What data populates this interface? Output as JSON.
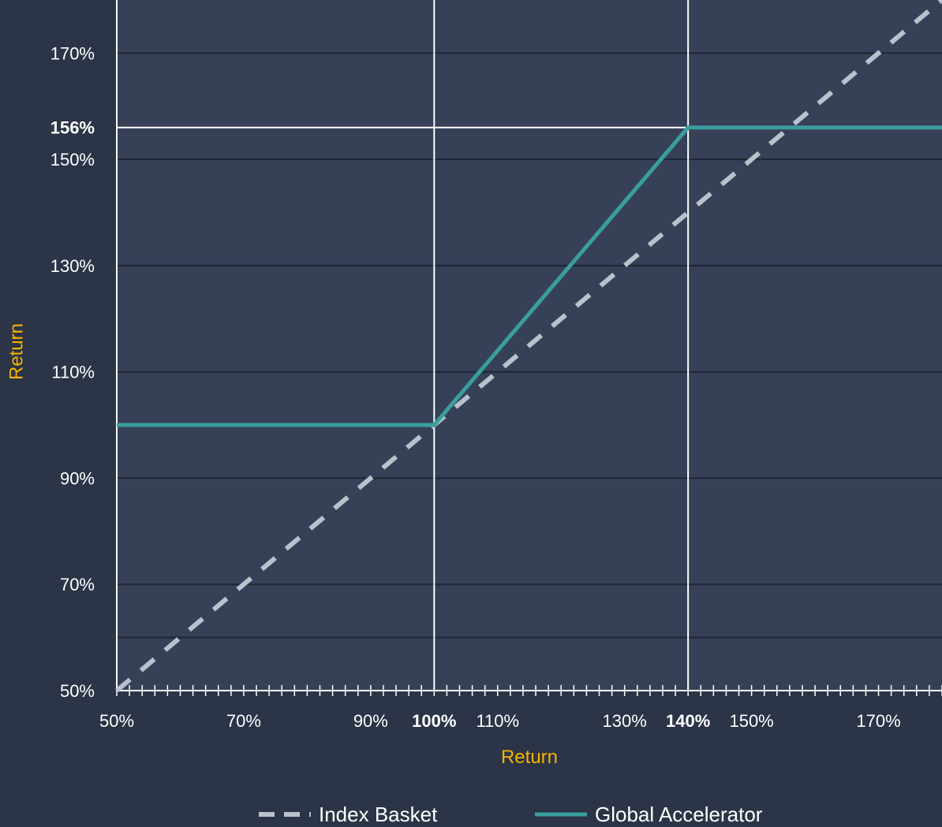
{
  "chart_data": {
    "type": "line",
    "xlabel": "Return",
    "ylabel": "Return",
    "xlim": [
      50,
      180
    ],
    "ylim": [
      50,
      180
    ],
    "x_ticks": [
      {
        "value": 50,
        "label": "50%",
        "bold": false
      },
      {
        "value": 70,
        "label": "70%",
        "bold": false
      },
      {
        "value": 90,
        "label": "90%",
        "bold": false
      },
      {
        "value": 100,
        "label": "100%",
        "bold": true
      },
      {
        "value": 110,
        "label": "110%",
        "bold": false
      },
      {
        "value": 130,
        "label": "130%",
        "bold": false
      },
      {
        "value": 140,
        "label": "140%",
        "bold": true
      },
      {
        "value": 150,
        "label": "150%",
        "bold": false
      },
      {
        "value": 170,
        "label": "170%",
        "bold": false
      }
    ],
    "y_ticks": [
      {
        "value": 50,
        "label": "50%",
        "bold": false
      },
      {
        "value": 70,
        "label": "70%",
        "bold": false
      },
      {
        "value": 90,
        "label": "90%",
        "bold": false
      },
      {
        "value": 110,
        "label": "110%",
        "bold": false
      },
      {
        "value": 130,
        "label": "130%",
        "bold": false
      },
      {
        "value": 150,
        "label": "150%",
        "bold": false
      },
      {
        "value": 156,
        "label": "156%",
        "bold": true
      },
      {
        "value": 170,
        "label": "170%",
        "bold": false
      }
    ],
    "y_gridlines": [
      60,
      70,
      90,
      110,
      130,
      150,
      170
    ],
    "reference_lines": {
      "x": [
        100,
        140
      ],
      "y": [
        156
      ]
    },
    "minor_tick_step": 2,
    "series": [
      {
        "name": "Index Basket",
        "style": "dashed",
        "color": "#b9c2cc",
        "points": [
          [
            50,
            50
          ],
          [
            180,
            180
          ]
        ]
      },
      {
        "name": "Global Accelerator",
        "style": "solid",
        "color": "#3a9e9e",
        "points": [
          [
            50,
            100
          ],
          [
            100,
            100
          ],
          [
            140,
            156
          ],
          [
            180,
            156
          ]
        ]
      }
    ],
    "legend_position": "bottom",
    "colors": {
      "background": "#2c3447",
      "plot_background": "#364158",
      "gridline": "#1f2533",
      "reference_line": "#ffffff",
      "axis_title": "#f5b400",
      "tick_label": "#ffffff"
    }
  }
}
